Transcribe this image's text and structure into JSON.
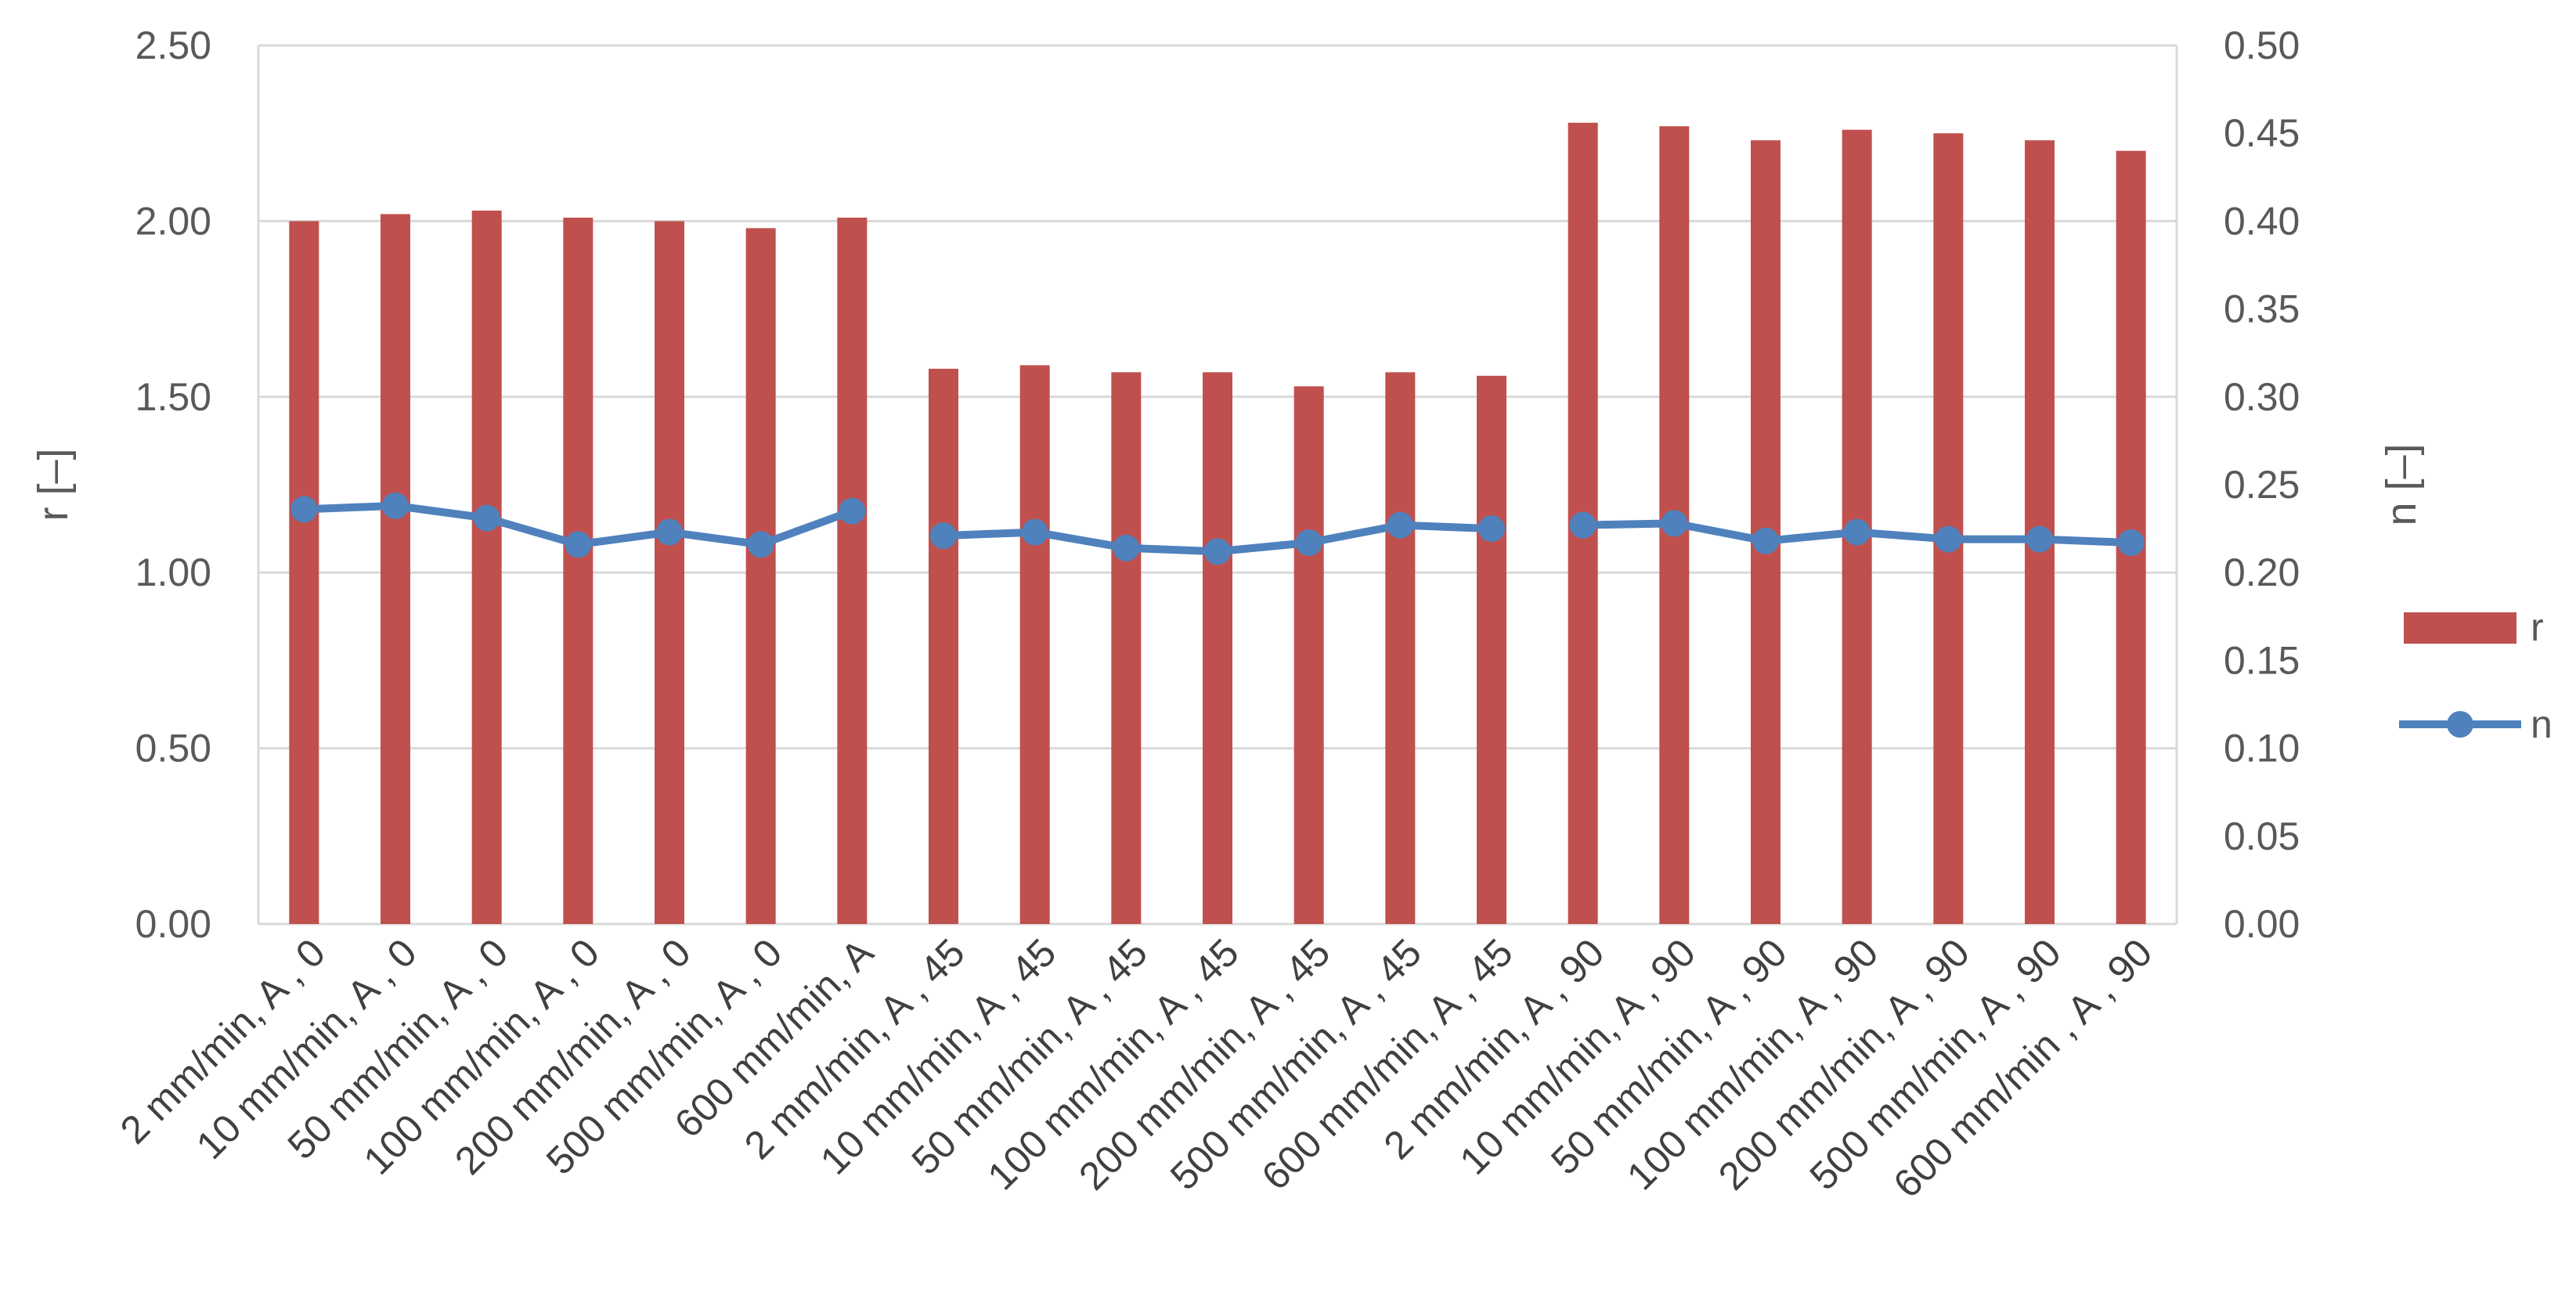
{
  "chart_data": {
    "type": "bar",
    "categories": [
      "2 mm/min,  A , 0",
      "10 mm/min,  A , 0",
      "50 mm/min,  A , 0",
      "100 mm/min,  A , 0",
      "200 mm/min,  A , 0",
      "500 mm/min,  A , 0",
      "600 mm/min,  A",
      "2 mm/min,  A , 45",
      "10 mm/min,  A , 45",
      "50 mm/min,  A , 45",
      "100 mm/min,  A , 45",
      "200 mm/min,  A , 45",
      "500 mm/min,  A , 45",
      "600 mm/min,  A , 45",
      "2 mm/min,  A , 90",
      "10 mm/min,  A , 90",
      "50 mm/min,  A , 90",
      "100 mm/min,  A , 90",
      "200 mm/min,  A , 90",
      "500 mm/min,  A , 90",
      "600 mm/min , A , 90"
    ],
    "series": [
      {
        "name": "r",
        "type": "bar",
        "axis": "left",
        "color": "#C0504D",
        "values": [
          2.0,
          2.02,
          2.03,
          2.01,
          2.0,
          1.98,
          2.01,
          1.58,
          1.59,
          1.57,
          1.57,
          1.53,
          1.57,
          1.56,
          2.28,
          2.27,
          2.23,
          2.26,
          2.25,
          2.23,
          2.2
        ]
      },
      {
        "name": "n",
        "type": "line",
        "axis": "right",
        "color": "#4F81BD",
        "segments": [
          [
            0,
            6
          ],
          [
            7,
            13
          ],
          [
            14,
            20
          ]
        ],
        "values": [
          0.236,
          0.238,
          0.231,
          0.216,
          0.223,
          0.216,
          0.235,
          0.221,
          0.223,
          0.214,
          0.212,
          0.217,
          0.227,
          0.225,
          0.227,
          0.228,
          0.218,
          0.223,
          0.219,
          0.219,
          0.217
        ]
      }
    ],
    "ylabel": "r [–]",
    "y2label": "n [–]",
    "ylim": [
      0,
      2.5
    ],
    "y2lim": [
      0,
      0.5
    ],
    "yticks": [
      "0.00",
      "0.50",
      "1.00",
      "1.50",
      "2.00",
      "2.50"
    ],
    "y2ticks": [
      "0.00",
      "0.05",
      "0.10",
      "0.15",
      "0.20",
      "0.25",
      "0.30",
      "0.35",
      "0.40",
      "0.45",
      "0.50"
    ],
    "grid": true,
    "legend": {
      "position": "right",
      "entries": [
        "r",
        "n"
      ]
    }
  }
}
